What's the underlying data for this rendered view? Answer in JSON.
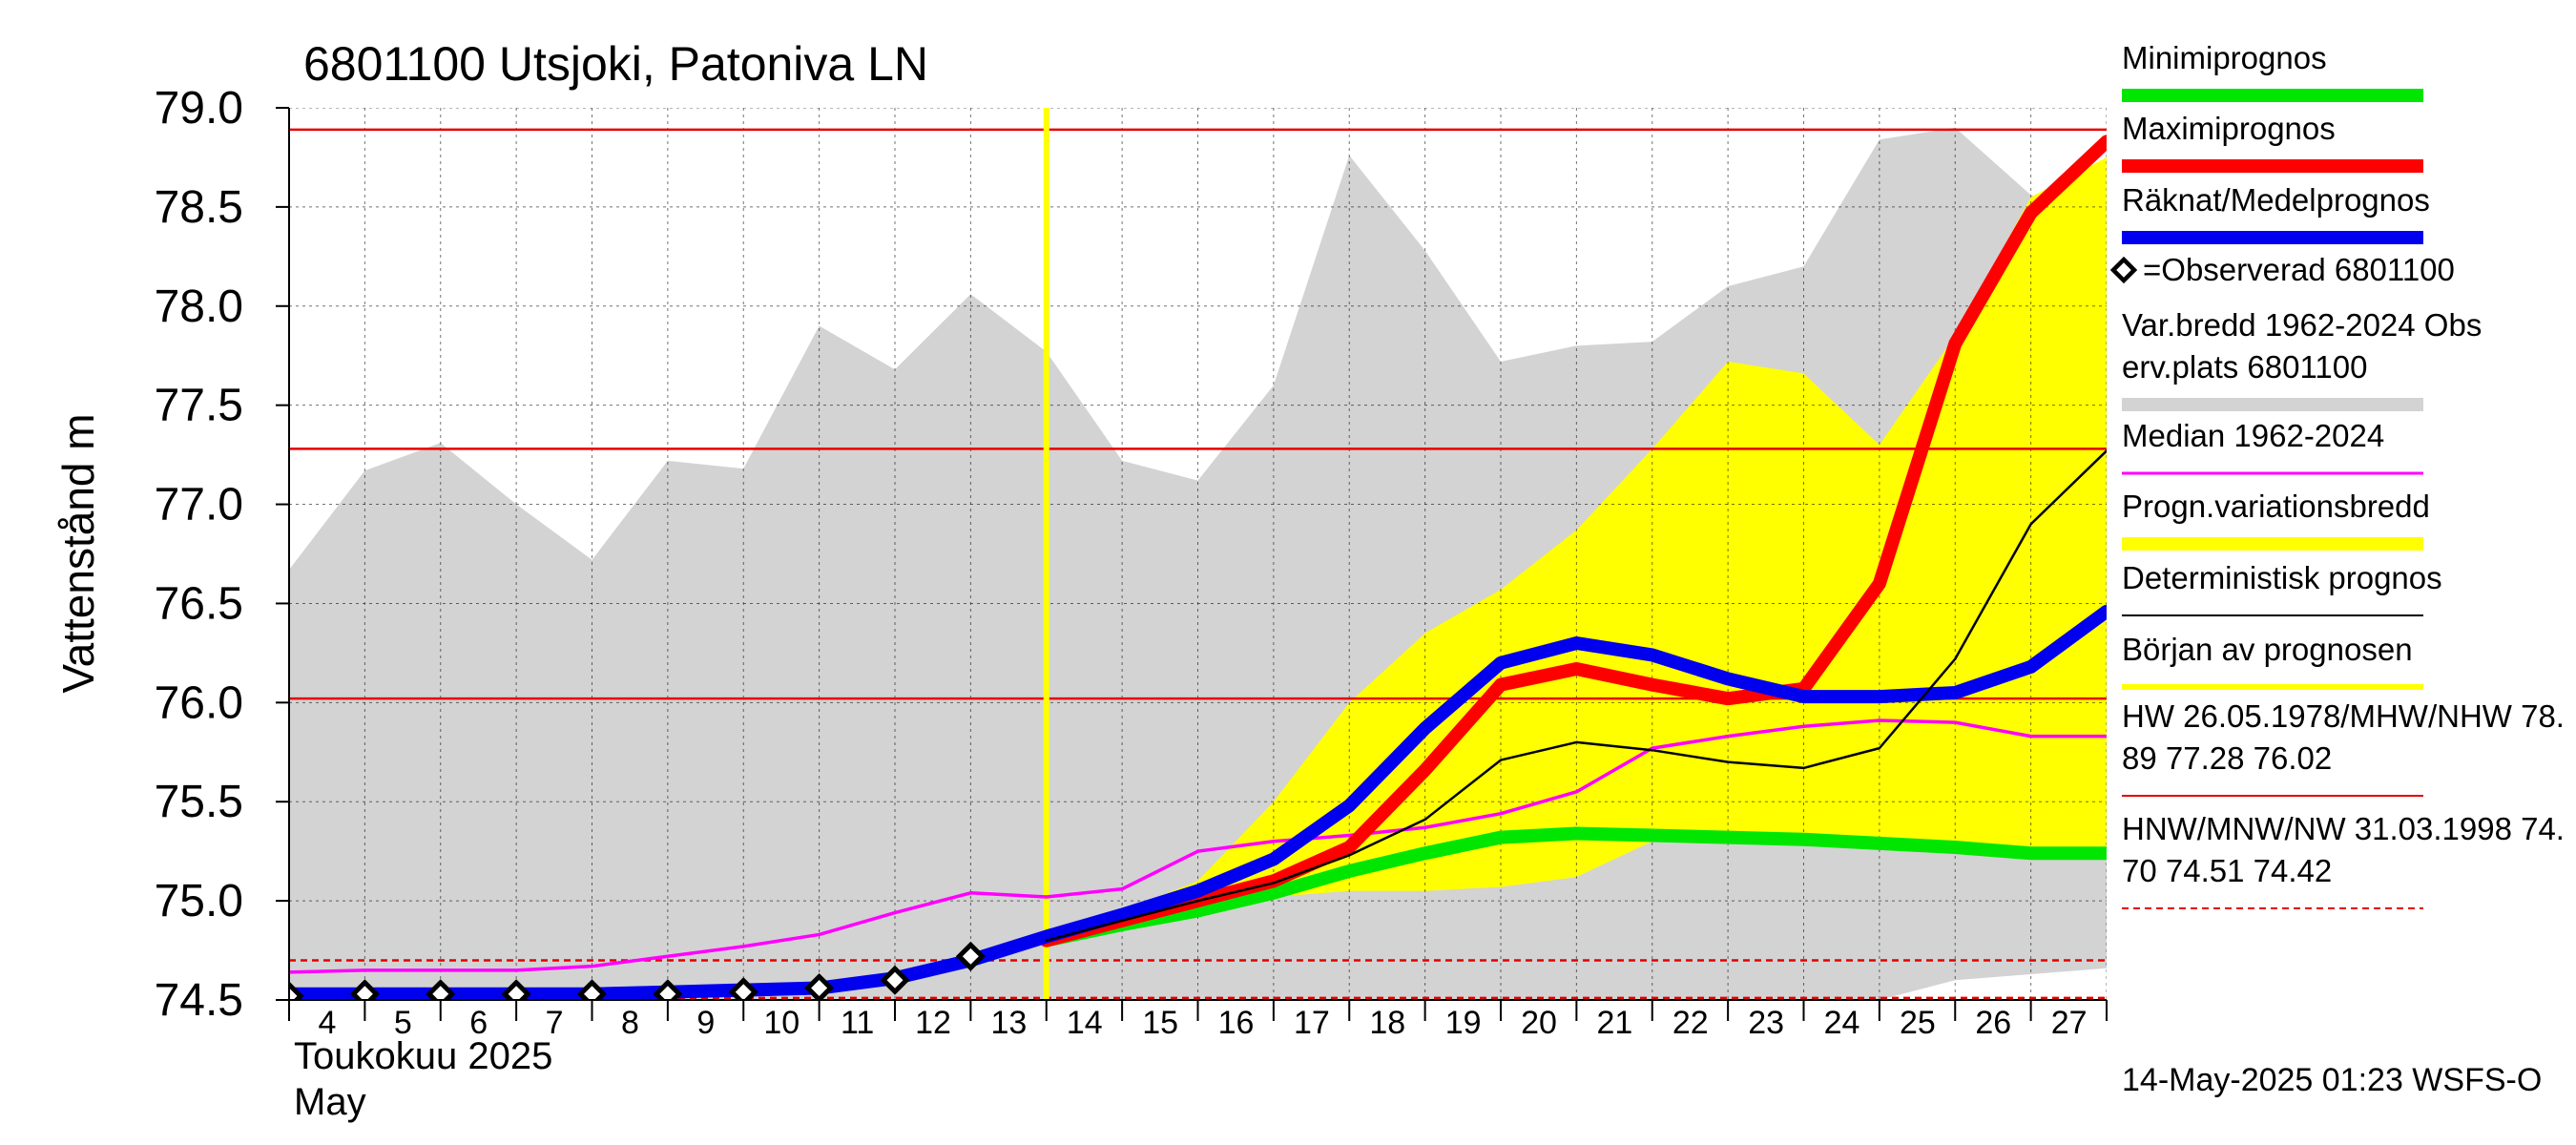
{
  "chart_data": {
    "type": "line",
    "title": "6801100 Utsjoki, Patoniva LN",
    "ylabel": "Vattenstånd m",
    "ylim": [
      74.5,
      79.0
    ],
    "y_ticks": [
      "74.5",
      "75.0",
      "75.5",
      "76.0",
      "76.5",
      "77.0",
      "77.5",
      "78.0",
      "78.5",
      "79.0"
    ],
    "x_day_labels": [
      "4",
      "5",
      "6",
      "7",
      "8",
      "9",
      "10",
      "11",
      "12",
      "13",
      "14",
      "15",
      "16",
      "17",
      "18",
      "19",
      "20",
      "21",
      "22",
      "23",
      "24",
      "25",
      "26",
      "27"
    ],
    "x_month_label_fi": "Toukokuu  2025",
    "x_month_label_en": "May",
    "x_range_days": [
      4,
      28
    ],
    "grid": true,
    "legend_position": "right",
    "forecast_start_day": 14,
    "reference_lines": [
      {
        "name": "HW",
        "value": 78.89,
        "style": "solid",
        "color": "#e60000"
      },
      {
        "name": "MHW",
        "value": 77.28,
        "style": "solid",
        "color": "#e60000"
      },
      {
        "name": "NHW",
        "value": 76.02,
        "style": "solid",
        "color": "#e60000"
      },
      {
        "name": "HNW",
        "value": 74.7,
        "style": "dashed",
        "color": "#e60000"
      },
      {
        "name": "MNW",
        "value": 74.51,
        "style": "dashed",
        "color": "#e60000"
      },
      {
        "name": "NW",
        "value": 74.42,
        "style": "dashed",
        "color": "#e60000"
      }
    ],
    "historical_band": {
      "x": [
        4,
        5,
        6,
        7,
        8,
        9,
        10,
        11,
        12,
        13,
        14,
        15,
        16,
        17,
        18,
        19,
        20,
        21,
        22,
        23,
        24,
        25,
        26,
        27,
        28
      ],
      "upper": [
        76.67,
        77.17,
        77.31,
        77.0,
        76.72,
        77.22,
        77.18,
        77.9,
        77.68,
        78.06,
        77.77,
        77.22,
        77.12,
        77.6,
        78.76,
        78.28,
        77.72,
        77.8,
        77.82,
        78.1,
        78.2,
        78.84,
        78.9,
        78.56,
        78.5
      ],
      "lower": [
        74.45,
        74.45,
        74.45,
        74.45,
        74.45,
        74.45,
        74.45,
        74.45,
        74.45,
        74.45,
        74.45,
        74.45,
        74.45,
        74.45,
        74.45,
        74.45,
        74.45,
        74.45,
        74.45,
        74.45,
        74.45,
        74.5,
        74.6,
        74.63,
        74.66
      ]
    },
    "forecast_band": {
      "x": [
        14,
        15,
        16,
        17,
        18,
        19,
        20,
        21,
        22,
        23,
        24,
        25,
        26,
        27,
        28
      ],
      "upper": [
        74.82,
        74.95,
        75.1,
        75.5,
        76.0,
        76.35,
        76.57,
        76.87,
        77.28,
        77.72,
        77.66,
        77.3,
        77.85,
        78.55,
        78.75
      ],
      "lower": [
        74.8,
        74.88,
        74.96,
        75.02,
        75.05,
        75.05,
        75.07,
        75.12,
        75.3,
        75.32,
        75.3,
        75.26,
        75.25,
        75.25,
        75.25
      ]
    },
    "series": [
      {
        "name": "Minimiprognos",
        "color": "#00e600",
        "x": [
          14,
          15,
          16,
          17,
          18,
          19,
          20,
          21,
          22,
          23,
          24,
          25,
          26,
          27,
          28
        ],
        "values": [
          74.8,
          74.88,
          74.95,
          75.04,
          75.15,
          75.24,
          75.32,
          75.34,
          75.33,
          75.32,
          75.31,
          75.29,
          75.27,
          75.24,
          75.24
        ]
      },
      {
        "name": "Maximiprognos",
        "color": "#ff0000",
        "x": [
          14,
          15,
          16,
          17,
          18,
          19,
          20,
          21,
          22,
          23,
          24,
          25,
          26,
          27,
          28
        ],
        "values": [
          74.8,
          74.9,
          75.0,
          75.1,
          75.27,
          75.66,
          76.09,
          76.17,
          76.09,
          76.02,
          76.07,
          76.6,
          77.81,
          78.47,
          78.83
        ]
      },
      {
        "name": "Räknat/Medelprognos",
        "color": "#0000ee",
        "x": [
          4,
          5,
          6,
          7,
          8,
          9,
          10,
          11,
          12,
          13,
          14,
          15,
          16,
          17,
          18,
          19,
          20,
          21,
          22,
          23,
          24,
          25,
          26,
          27,
          28
        ],
        "values": [
          74.53,
          74.53,
          74.53,
          74.53,
          74.53,
          74.54,
          74.55,
          74.56,
          74.61,
          74.7,
          74.82,
          74.93,
          75.05,
          75.21,
          75.48,
          75.87,
          76.2,
          76.3,
          76.24,
          76.12,
          76.03,
          76.03,
          76.05,
          76.18,
          76.46
        ]
      },
      {
        "name": "Median 1962-2024",
        "color": "#ff00ff",
        "x": [
          4,
          5,
          6,
          7,
          8,
          9,
          10,
          11,
          12,
          13,
          14,
          15,
          16,
          17,
          18,
          19,
          20,
          21,
          22,
          23,
          24,
          25,
          26,
          27,
          28
        ],
        "values": [
          74.64,
          74.65,
          74.65,
          74.65,
          74.67,
          74.72,
          74.77,
          74.83,
          74.94,
          75.04,
          75.02,
          75.06,
          75.25,
          75.3,
          75.33,
          75.37,
          75.44,
          75.55,
          75.77,
          75.83,
          75.88,
          75.91,
          75.9,
          75.83,
          75.83
        ]
      },
      {
        "name": "Deterministisk prognos",
        "color": "#000000",
        "x": [
          14,
          15,
          16,
          17,
          18,
          19,
          20,
          21,
          22,
          23,
          24,
          25,
          26,
          27,
          28
        ],
        "values": [
          74.8,
          74.9,
          75.0,
          75.09,
          75.23,
          75.41,
          75.71,
          75.8,
          75.76,
          75.7,
          75.67,
          75.77,
          76.22,
          76.9,
          77.27
        ]
      }
    ],
    "observed": {
      "name": "Observerad 6801100",
      "x": [
        4,
        5,
        6,
        7,
        8,
        9,
        10,
        11,
        12,
        13
      ],
      "values": [
        74.52,
        74.53,
        74.53,
        74.53,
        74.53,
        74.53,
        74.54,
        74.56,
        74.6,
        74.72
      ]
    },
    "legend": [
      {
        "key": "min",
        "lines": [
          "Minimiprognos"
        ],
        "color": "#00e600",
        "width": 14
      },
      {
        "key": "max",
        "lines": [
          "Maximiprognos"
        ],
        "color": "#ff0000",
        "width": 14
      },
      {
        "key": "mean",
        "lines": [
          "Räknat/Medelprognos"
        ],
        "color": "#0000ee",
        "width": 14
      },
      {
        "key": "obs",
        "lines": [
          "=Observerad 6801100"
        ],
        "color": "#000000",
        "marker": "diamond"
      },
      {
        "key": "hist",
        "lines": [
          "Var.bredd 1962-2024   Obs",
          "erv.plats 6801100"
        ],
        "color": "#d3d3d3",
        "width": 14
      },
      {
        "key": "median",
        "lines": [
          "Median 1962-2024"
        ],
        "color": "#ff00ff",
        "width": 3
      },
      {
        "key": "band",
        "lines": [
          "Progn.variationsbredd"
        ],
        "color": "#ffff00",
        "width": 14
      },
      {
        "key": "det",
        "lines": [
          "Deterministisk prognos"
        ],
        "color": "#000000",
        "width": 2
      },
      {
        "key": "start",
        "lines": [
          "Början av prognosen"
        ],
        "color": "#ffff00",
        "width": 6
      },
      {
        "key": "hw",
        "lines": [
          "HW 26.05.1978/MHW/NHW 78.",
          "89 77.28 76.02"
        ],
        "color": "#e60000",
        "width": 2
      },
      {
        "key": "nw",
        "lines": [
          "HNW/MNW/NW 31.03.1998 74.",
          "70 74.51 74.42"
        ],
        "color": "#e60000",
        "width": 2,
        "dashed": true
      }
    ],
    "footer": "14-May-2025 01:23 WSFS-O"
  }
}
